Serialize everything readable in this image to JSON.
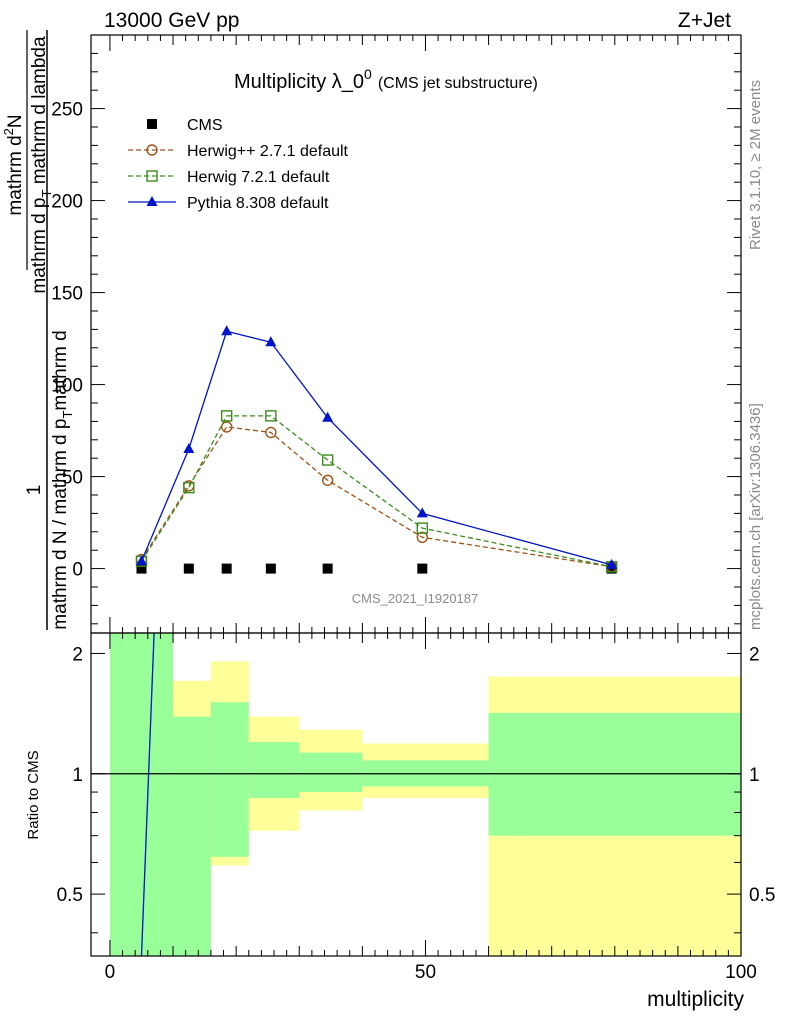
{
  "header": {
    "left": "13000 GeV pp",
    "right": "Z+Jet"
  },
  "side_labels": {
    "rivet": "Rivet 3.1.10, ≥ 2M events",
    "mcplots": "mcplots.cern.ch [arXiv:1306.3436]"
  },
  "watermark": "CMS_2021_I1920187",
  "colors": {
    "cms": "#000000",
    "herwigpp": "#a0521a",
    "herwig7": "#3c8c1e",
    "pythia": "#0014c8",
    "band_inner": "#99ff99",
    "band_outer": "#ffff99"
  },
  "chart_data": [
    {
      "type": "line",
      "title_main": "Multiplicity λ_0",
      "title_sup": "0",
      "title_sub": "(CMS jet substructure)",
      "ylabel_num": "1",
      "ylabel_den_a": "mathrm d N / mathrm d p",
      "ylabel_den_sub": "T",
      "ylabel_den_b": "mathrm d",
      "ylabel_top_a": "mathrm d",
      "ylabel_top_sup": "2",
      "ylabel_top_b": "N",
      "ylabel_top2_a": "mathrm d p",
      "ylabel_top2_sub": "T",
      "ylabel_top2_b": " mathrm d lambda",
      "xlim": [
        -3,
        100
      ],
      "ylim": [
        -35,
        290
      ],
      "yticks": [
        0,
        50,
        100,
        150,
        200,
        250
      ],
      "ytick_labels": [
        "0",
        "50",
        "100",
        "150",
        "200",
        "250"
      ],
      "legend_position": "top-left",
      "series": [
        {
          "name": "CMS",
          "marker": "square",
          "x": [
            5,
            12.5,
            18.5,
            25.5,
            34.5,
            49.5,
            79.5
          ],
          "y": [
            0,
            0,
            0,
            0,
            0,
            0,
            0
          ]
        },
        {
          "name": "Herwig++ 2.7.1 default",
          "marker": "circle",
          "x": [
            5,
            12.5,
            18.5,
            25.5,
            34.5,
            49.5,
            79.5
          ],
          "y": [
            5,
            45,
            77,
            74,
            48,
            17,
            1
          ]
        },
        {
          "name": "Herwig 7.2.1 default",
          "marker": "open-square",
          "x": [
            5,
            12.5,
            18.5,
            25.5,
            34.5,
            49.5,
            79.5
          ],
          "y": [
            4,
            44,
            83,
            83,
            59,
            22,
            1
          ]
        },
        {
          "name": "Pythia 8.308 default",
          "marker": "triangle",
          "x": [
            5,
            12.5,
            18.5,
            25.5,
            34.5,
            49.5,
            79.5
          ],
          "y": [
            4,
            65,
            129,
            123,
            82,
            30,
            2
          ]
        }
      ]
    },
    {
      "type": "area",
      "ylabel": "Ratio to CMS",
      "xlabel": "multiplicity",
      "xlim": [
        -3,
        100
      ],
      "ylim": [
        0.35,
        2.25
      ],
      "xticks": [
        0,
        50,
        100
      ],
      "xtick_labels": [
        "0",
        "50",
        "100"
      ],
      "yticks": [
        0.5,
        1,
        2
      ],
      "ytick_labels": [
        "0.5",
        "1",
        "2"
      ],
      "bands": [
        {
          "x0": 0,
          "x1": 10,
          "inner": [
            0.35,
            2.25
          ],
          "outer": [
            0.35,
            2.25
          ]
        },
        {
          "x0": 10,
          "x1": 16,
          "inner": [
            0.35,
            1.39
          ],
          "outer": [
            0.72,
            1.71
          ]
        },
        {
          "x0": 16,
          "x1": 22,
          "inner": [
            0.62,
            1.51
          ],
          "outer": [
            0.59,
            1.91
          ]
        },
        {
          "x0": 22,
          "x1": 30,
          "inner": [
            0.87,
            1.2
          ],
          "outer": [
            0.72,
            1.39
          ]
        },
        {
          "x0": 30,
          "x1": 40,
          "inner": [
            0.9,
            1.13
          ],
          "outer": [
            0.81,
            1.29
          ]
        },
        {
          "x0": 40,
          "x1": 60,
          "inner": [
            0.93,
            1.08
          ],
          "outer": [
            0.87,
            1.19
          ]
        },
        {
          "x0": 60,
          "x1": 100,
          "inner": [
            0.7,
            1.42
          ],
          "outer": [
            0.35,
            1.75
          ]
        }
      ],
      "pythia_ratio_line": {
        "x": [
          5,
          7
        ],
        "y": [
          0.35,
          2.25
        ]
      }
    }
  ]
}
